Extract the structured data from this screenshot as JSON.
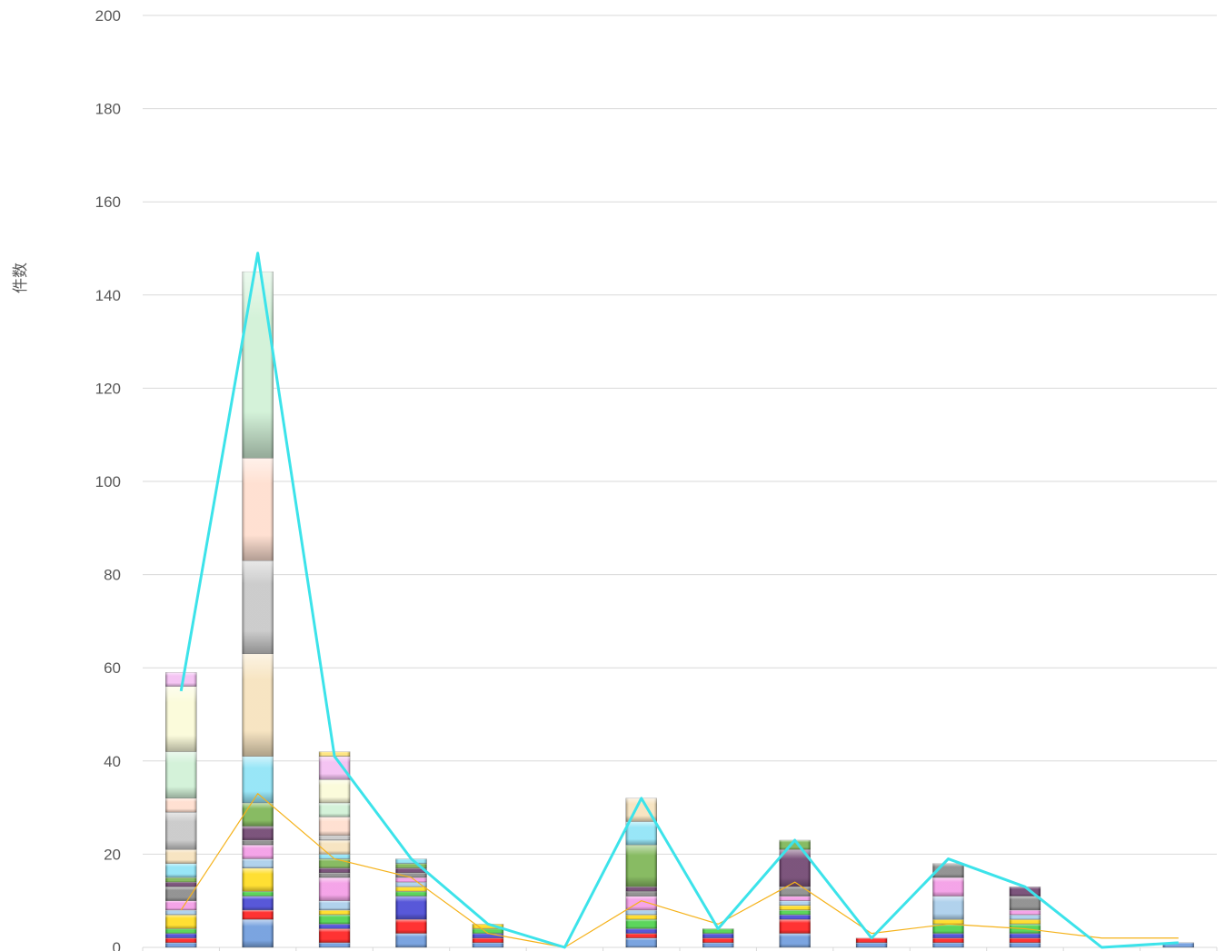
{
  "chart_data": {
    "type": "bar",
    "stacked": true,
    "title": "",
    "xlabel": "",
    "ylabel": "件数",
    "ylim": [
      0,
      200
    ],
    "y_ticks": [
      0,
      20,
      40,
      60,
      80,
      100,
      120,
      140,
      160,
      180,
      200
    ],
    "grid": true,
    "legend": "none",
    "category_count": 14,
    "stacks": [
      [
        1,
        1,
        1,
        1,
        3,
        1,
        2,
        3,
        1,
        1,
        3,
        3,
        8,
        3,
        10,
        14,
        3
      ],
      [
        6,
        2,
        3,
        1,
        5,
        2,
        3,
        1,
        3,
        5,
        10,
        22,
        20,
        22,
        40
      ],
      [
        1,
        3,
        1,
        2,
        1,
        2,
        5,
        1,
        1,
        2,
        1,
        3,
        1,
        4,
        3,
        5,
        5,
        1
      ],
      [
        3,
        3,
        5,
        1,
        1,
        1,
        1,
        1,
        1,
        1,
        1
      ],
      [
        1,
        1,
        1,
        1,
        1
      ],
      [],
      [
        2,
        1,
        1,
        2,
        1,
        1,
        3,
        1,
        1,
        9,
        5,
        5
      ],
      [
        1,
        1,
        1,
        1
      ],
      [
        3,
        3,
        1,
        1,
        1,
        1,
        1,
        2,
        8,
        2
      ],
      [
        1,
        1
      ],
      [
        1,
        1,
        1,
        2,
        1,
        5,
        4,
        3
      ],
      [
        1,
        1,
        1,
        2,
        1,
        1,
        1,
        3,
        2
      ],
      [],
      [
        1
      ]
    ],
    "segment_colors": [
      "#5a8ed8",
      "#ff0000",
      "#2e2ecf",
      "#33cc33",
      "#ffd700",
      "#9ec7e8",
      "#f28ee2",
      "#7a7a7a",
      "#5c2b5c",
      "#6aaa3c",
      "#7fe0f5",
      "#f5deb3",
      "#c0c0c0",
      "#ffd9c7",
      "#c9efd0",
      "#fafad2",
      "#f2b5f0",
      "#ffe066"
    ],
    "series": [
      {
        "type": "line",
        "color": "#3ce3ea",
        "values": [
          55,
          149,
          41,
          19,
          5,
          0,
          32,
          4,
          23,
          2,
          19,
          13,
          0,
          1
        ]
      },
      {
        "type": "line",
        "color": "#f5b21a",
        "values": [
          8,
          33,
          19,
          15,
          3,
          0,
          10,
          5,
          14,
          3,
          5,
          4,
          2,
          2
        ]
      }
    ]
  }
}
